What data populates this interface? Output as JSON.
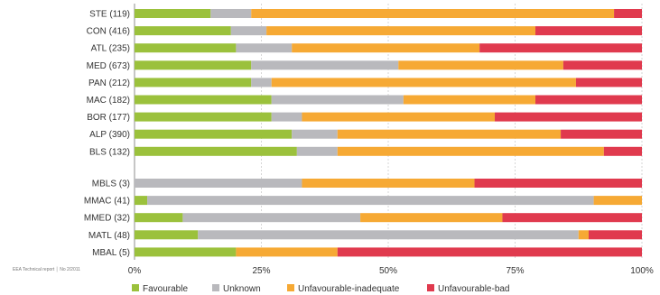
{
  "source_note": "EEA Technical report │ No 2/2011",
  "chart_data": {
    "type": "bar",
    "orientation": "horizontal",
    "stacked": true,
    "percent": true,
    "grid": true,
    "legend_position": "bottom",
    "xlim": [
      0,
      100
    ],
    "x_ticks": [
      "0%",
      "25%",
      "50%",
      "75%",
      "100%"
    ],
    "groups": [
      [
        "STE (119)",
        "CON (416)",
        "ATL (235)",
        "MED (673)",
        "PAN (212)",
        "MAC (182)",
        "BOR (177)",
        "ALP (390)",
        "BLS (132)"
      ],
      [
        "MBLS (3)",
        "MMAC (41)",
        "MMED (32)",
        "MATL (48)",
        "MBAL (5)"
      ]
    ],
    "categories": [
      "STE (119)",
      "CON (416)",
      "ATL (235)",
      "MED (673)",
      "PAN (212)",
      "MAC (182)",
      "BOR (177)",
      "ALP (390)",
      "BLS (132)",
      "MBLS (3)",
      "MMAC (41)",
      "MMED (32)",
      "MATL (48)",
      "MBAL (5)"
    ],
    "series": [
      {
        "name": "Favourable",
        "color": "#9bc13c",
        "values": [
          15,
          19,
          20,
          23,
          23,
          27,
          27,
          31,
          32,
          0,
          2.5,
          9.5,
          12.5,
          20
        ]
      },
      {
        "name": "Unknown",
        "color": "#b9b9bd",
        "values": [
          8,
          7,
          11,
          29,
          4,
          26,
          6,
          9,
          8,
          33,
          88,
          35,
          75,
          0
        ]
      },
      {
        "name": "Unfavourable-inadequate",
        "color": "#f6a934",
        "values": [
          71.5,
          53,
          37,
          32.5,
          60,
          26,
          38,
          44,
          52.5,
          34,
          9.5,
          28,
          2,
          20
        ]
      },
      {
        "name": "Unfavourable-bad",
        "color": "#e03a4e",
        "values": [
          5.5,
          21,
          32,
          15.5,
          13,
          21,
          29,
          16,
          7.5,
          33,
          0,
          27.5,
          10.5,
          60
        ]
      }
    ]
  }
}
